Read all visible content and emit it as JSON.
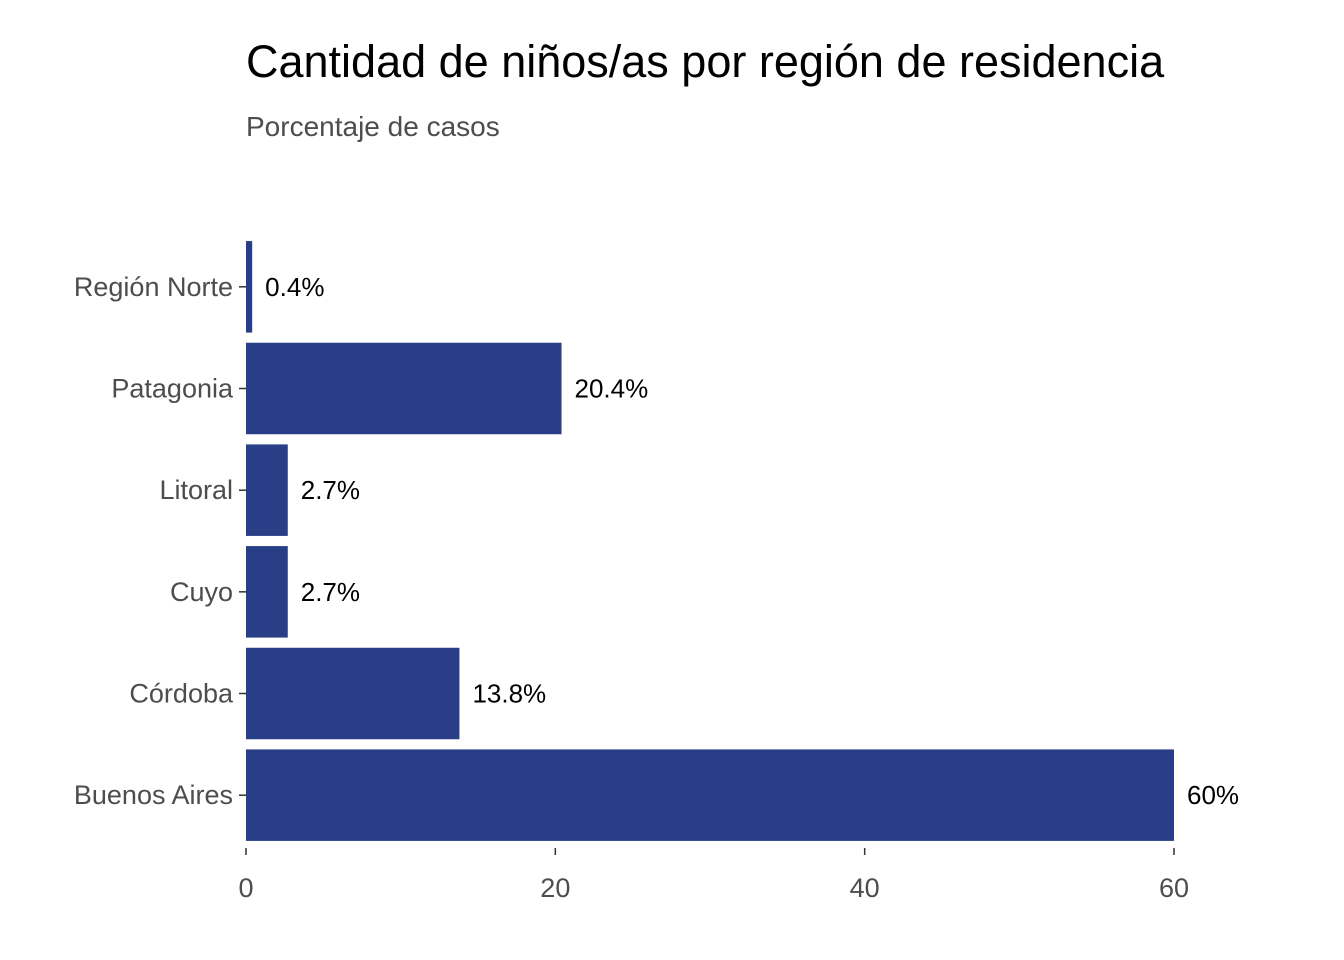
{
  "chart_data": {
    "type": "bar",
    "orientation": "horizontal",
    "title": "Cantidad de niños/as por región de residencia",
    "subtitle": "Porcentaje de casos",
    "xlabel": "",
    "ylabel": "",
    "categories": [
      "Región Norte",
      "Patagonia",
      "Litoral",
      "Cuyo",
      "Córdoba",
      "Buenos Aires"
    ],
    "values": [
      0.4,
      20.4,
      2.7,
      2.7,
      13.8,
      60
    ],
    "value_labels": [
      "0.4%",
      "20.4%",
      "2.7%",
      "2.7%",
      "13.8%",
      "60%"
    ],
    "xlim": [
      0,
      60
    ],
    "xticks": [
      0,
      20,
      40,
      60
    ],
    "xtick_labels": [
      "0",
      "20",
      "40",
      "60"
    ],
    "grid": false,
    "legend": "none",
    "bar_color": "#283f88"
  }
}
